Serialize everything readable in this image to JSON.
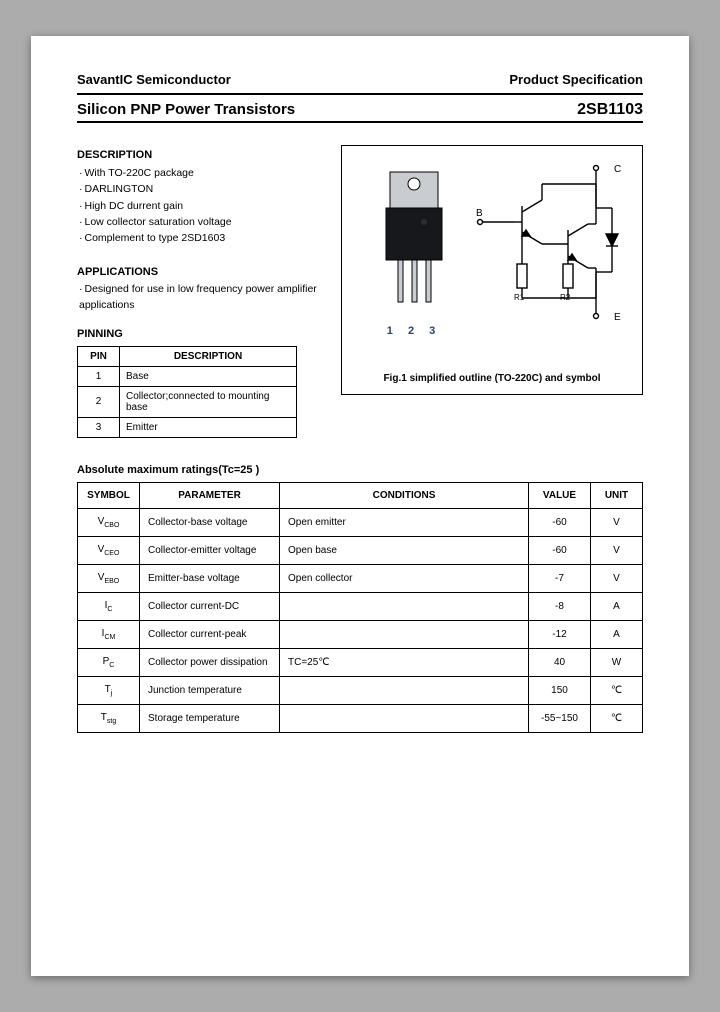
{
  "header": {
    "company": "SavantIC Semiconductor",
    "doc_type": "Product Specification"
  },
  "title": {
    "product_line": "Silicon PNP Power Transistors",
    "part_number": "2SB1103"
  },
  "description": {
    "heading": "DESCRIPTION",
    "items": [
      "With TO-220C package",
      "DARLINGTON",
      "High DC durrent gain",
      "Low collector saturation voltage",
      "Complement to type 2SD1603"
    ]
  },
  "applications": {
    "heading": "APPLICATIONS",
    "items": [
      "Designed for use in low frequency power amplifier applications"
    ]
  },
  "pinning": {
    "heading": "PINNING",
    "col_pin": "PIN",
    "col_desc": "DESCRIPTION",
    "rows": [
      {
        "pin": "1",
        "desc": "Base"
      },
      {
        "pin": "2",
        "desc": "Collector;connected to mounting base"
      },
      {
        "pin": "3",
        "desc": "Emitter"
      }
    ]
  },
  "figure": {
    "pin_numbers": "1 2 3",
    "caption": "Fig.1 simplified outline (TO-220C) and symbol",
    "labels": {
      "b": "B",
      "c": "C",
      "e": "E",
      "r1": "R1",
      "r2": "R2"
    }
  },
  "ratings": {
    "heading": "Absolute maximum ratings(Tc=25  )",
    "cols": {
      "symbol": "SYMBOL",
      "parameter": "PARAMETER",
      "conditions": "CONDITIONS",
      "value": "VALUE",
      "unit": "UNIT"
    },
    "rows": [
      {
        "symbol": "V",
        "sub": "CBO",
        "param": "Collector-base voltage",
        "cond": "Open emitter",
        "value": "-60",
        "unit": "V"
      },
      {
        "symbol": "V",
        "sub": "CEO",
        "param": "Collector-emitter voltage",
        "cond": "Open base",
        "value": "-60",
        "unit": "V"
      },
      {
        "symbol": "V",
        "sub": "EBO",
        "param": "Emitter-base voltage",
        "cond": "Open collector",
        "value": "-7",
        "unit": "V"
      },
      {
        "symbol": "I",
        "sub": "C",
        "param": "Collector current-DC",
        "cond": "",
        "value": "-8",
        "unit": "A"
      },
      {
        "symbol": "I",
        "sub": "CM",
        "param": "Collector current-peak",
        "cond": "",
        "value": "-12",
        "unit": "A"
      },
      {
        "symbol": "P",
        "sub": "C",
        "param": "Collector power dissipation",
        "cond": "TC=25℃",
        "value": "40",
        "unit": "W"
      },
      {
        "symbol": "T",
        "sub": "j",
        "param": "Junction temperature",
        "cond": "",
        "value": "150",
        "unit": "℃"
      },
      {
        "symbol": "T",
        "sub": "stg",
        "param": "Storage temperature",
        "cond": "",
        "value": "-55~150",
        "unit": "℃"
      }
    ]
  }
}
